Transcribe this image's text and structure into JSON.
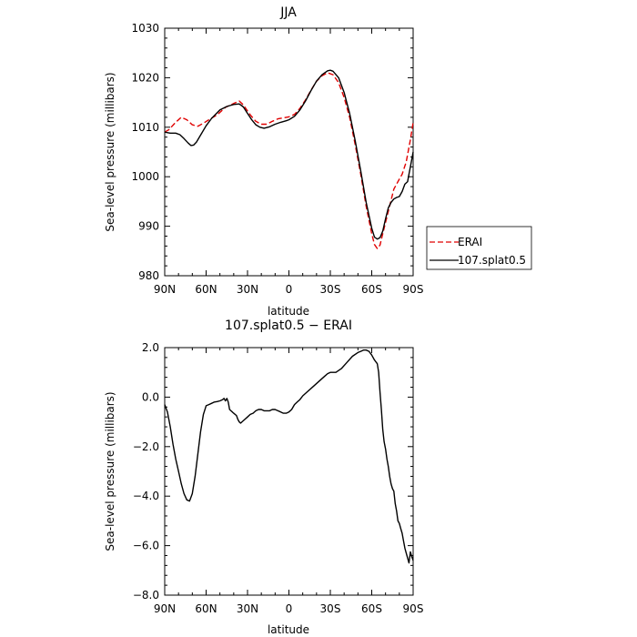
{
  "chart_data": [
    {
      "type": "line",
      "title": "JJA",
      "xlabel": "latitude",
      "ylabel": "Sea-level pressure (millibars)",
      "xlim": [
        90,
        -90
      ],
      "ylim": [
        980,
        1030
      ],
      "x_ticks": [
        90,
        60,
        30,
        0,
        -30,
        -60,
        -90
      ],
      "x_tick_labels": [
        "90N",
        "60N",
        "30N",
        "0",
        "30S",
        "60S",
        "90S"
      ],
      "y_ticks": [
        980,
        990,
        1000,
        1010,
        1020,
        1030
      ],
      "y_tick_labels": [
        "980",
        "990",
        "1000",
        "1010",
        "1020",
        "1030"
      ],
      "legend_placement": "right",
      "series": [
        {
          "name": "ERAI",
          "color": "#e00000",
          "dash": "dashed",
          "points": [
            [
              90,
              1009
            ],
            [
              87,
              1009.5
            ],
            [
              82,
              1011
            ],
            [
              78,
              1012
            ],
            [
              74,
              1011.5
            ],
            [
              70,
              1010.5
            ],
            [
              66,
              1010.2
            ],
            [
              62,
              1010.8
            ],
            [
              58,
              1011.5
            ],
            [
              52,
              1012.5
            ],
            [
              46,
              1014
            ],
            [
              40,
              1014.8
            ],
            [
              36,
              1015.3
            ],
            [
              33,
              1014.5
            ],
            [
              28,
              1012.5
            ],
            [
              24,
              1011.2
            ],
            [
              20,
              1010.6
            ],
            [
              16,
              1010.6
            ],
            [
              12,
              1011.2
            ],
            [
              8,
              1011.7
            ],
            [
              4,
              1011.9
            ],
            [
              0,
              1012.1
            ],
            [
              -4,
              1012.6
            ],
            [
              -8,
              1013.8
            ],
            [
              -12,
              1015.5
            ],
            [
              -16,
              1017.5
            ],
            [
              -20,
              1019.3
            ],
            [
              -24,
              1020.4
            ],
            [
              -28,
              1021
            ],
            [
              -32,
              1020.6
            ],
            [
              -36,
              1019
            ],
            [
              -40,
              1016
            ],
            [
              -44,
              1012
            ],
            [
              -48,
              1006.5
            ],
            [
              -52,
              1000.5
            ],
            [
              -56,
              994
            ],
            [
              -60,
              988.5
            ],
            [
              -62,
              986.3
            ],
            [
              -64,
              985.5
            ],
            [
              -66,
              986.2
            ],
            [
              -68,
              988.5
            ],
            [
              -72,
              993
            ],
            [
              -76,
              997.5
            ],
            [
              -80,
              999.5
            ],
            [
              -82,
              1000.5
            ],
            [
              -85,
              1003
            ],
            [
              -88,
              1007.5
            ],
            [
              -90,
              1011
            ]
          ]
        },
        {
          "name": "107.splat0.5",
          "color": "#000000",
          "dash": "solid",
          "points": [
            [
              90,
              1009
            ],
            [
              86,
              1008.8
            ],
            [
              82,
              1008.8
            ],
            [
              79,
              1008.5
            ],
            [
              76,
              1007.7
            ],
            [
              73,
              1006.8
            ],
            [
              71,
              1006.3
            ],
            [
              69,
              1006.4
            ],
            [
              67,
              1007
            ],
            [
              64,
              1008.4
            ],
            [
              60,
              1010.3
            ],
            [
              56,
              1011.8
            ],
            [
              50,
              1013.5
            ],
            [
              45,
              1014.2
            ],
            [
              40,
              1014.6
            ],
            [
              36,
              1014.7
            ],
            [
              33,
              1014.1
            ],
            [
              30,
              1012.8
            ],
            [
              27,
              1011.5
            ],
            [
              24,
              1010.5
            ],
            [
              21,
              1010
            ],
            [
              18,
              1009.8
            ],
            [
              14,
              1010.1
            ],
            [
              10,
              1010.6
            ],
            [
              6,
              1011
            ],
            [
              2,
              1011.3
            ],
            [
              0,
              1011.5
            ],
            [
              -4,
              1012.2
            ],
            [
              -8,
              1013.5
            ],
            [
              -12,
              1015.3
            ],
            [
              -16,
              1017.4
            ],
            [
              -20,
              1019.3
            ],
            [
              -24,
              1020.6
            ],
            [
              -28,
              1021.4
            ],
            [
              -30,
              1021.5
            ],
            [
              -32,
              1021.3
            ],
            [
              -36,
              1020
            ],
            [
              -40,
              1017
            ],
            [
              -44,
              1012.8
            ],
            [
              -48,
              1007.3
            ],
            [
              -52,
              1001.2
            ],
            [
              -56,
              994.8
            ],
            [
              -60,
              989.6
            ],
            [
              -62,
              987.8
            ],
            [
              -64,
              987.4
            ],
            [
              -66,
              987.7
            ],
            [
              -68,
              989
            ],
            [
              -70,
              991.5
            ],
            [
              -72,
              993.7
            ],
            [
              -74,
              994.8
            ],
            [
              -76,
              995.5
            ],
            [
              -78,
              995.8
            ],
            [
              -80,
              996
            ],
            [
              -82,
              997
            ],
            [
              -84,
              998.5
            ],
            [
              -86,
              999
            ],
            [
              -87,
              1000.5
            ],
            [
              -88,
              1002
            ],
            [
              -89,
              1003.5
            ],
            [
              -90,
              1005
            ]
          ]
        }
      ]
    },
    {
      "type": "line",
      "title": "107.splat0.5 − ERAI",
      "xlabel": "latitude",
      "ylabel": "Sea-level pressure (millibars)",
      "xlim": [
        90,
        -90
      ],
      "ylim": [
        -8,
        2
      ],
      "x_ticks": [
        90,
        60,
        30,
        0,
        -30,
        -60,
        -90
      ],
      "x_tick_labels": [
        "90N",
        "60N",
        "30N",
        "0",
        "30S",
        "60S",
        "90S"
      ],
      "y_ticks": [
        -8,
        -6,
        -4,
        -2,
        0,
        2
      ],
      "y_tick_labels": [
        "−8.0",
        "−6.0",
        "−4.0",
        "−2.0",
        "0.0",
        "2.0"
      ],
      "series": [
        {
          "color": "#000000",
          "dash": "solid",
          "points": [
            [
              90,
              -0.3
            ],
            [
              88,
              -0.6
            ],
            [
              86,
              -1.2
            ],
            [
              84,
              -1.9
            ],
            [
              82,
              -2.5
            ],
            [
              80,
              -3
            ],
            [
              78,
              -3.5
            ],
            [
              76,
              -3.9
            ],
            [
              74,
              -4.15
            ],
            [
              72,
              -4.2
            ],
            [
              70,
              -3.9
            ],
            [
              68,
              -3.2
            ],
            [
              66,
              -2.3
            ],
            [
              64,
              -1.4
            ],
            [
              62,
              -0.7
            ],
            [
              60,
              -0.35
            ],
            [
              58,
              -0.3
            ],
            [
              56,
              -0.25
            ],
            [
              54,
              -0.2
            ],
            [
              52,
              -0.18
            ],
            [
              50,
              -0.15
            ],
            [
              48,
              -0.1
            ],
            [
              47,
              -0.05
            ],
            [
              46,
              -0.15
            ],
            [
              45,
              -0.05
            ],
            [
              44,
              -0.2
            ],
            [
              43,
              -0.5
            ],
            [
              42,
              -0.55
            ],
            [
              41,
              -0.6
            ],
            [
              40,
              -0.65
            ],
            [
              39,
              -0.7
            ],
            [
              38,
              -0.75
            ],
            [
              37,
              -0.9
            ],
            [
              36,
              -1
            ],
            [
              35,
              -1.05
            ],
            [
              34,
              -1
            ],
            [
              32,
              -0.9
            ],
            [
              30,
              -0.8
            ],
            [
              28,
              -0.7
            ],
            [
              26,
              -0.65
            ],
            [
              24,
              -0.55
            ],
            [
              22,
              -0.5
            ],
            [
              20,
              -0.5
            ],
            [
              18,
              -0.55
            ],
            [
              16,
              -0.55
            ],
            [
              14,
              -0.55
            ],
            [
              12,
              -0.5
            ],
            [
              10,
              -0.5
            ],
            [
              8,
              -0.55
            ],
            [
              6,
              -0.6
            ],
            [
              4,
              -0.65
            ],
            [
              2,
              -0.65
            ],
            [
              0,
              -0.6
            ],
            [
              -2,
              -0.5
            ],
            [
              -4,
              -0.3
            ],
            [
              -6,
              -0.2
            ],
            [
              -8,
              -0.1
            ],
            [
              -10,
              0.05
            ],
            [
              -14,
              0.25
            ],
            [
              -18,
              0.45
            ],
            [
              -22,
              0.65
            ],
            [
              -26,
              0.85
            ],
            [
              -28,
              0.95
            ],
            [
              -30,
              1
            ],
            [
              -34,
              1
            ],
            [
              -38,
              1.15
            ],
            [
              -42,
              1.4
            ],
            [
              -46,
              1.65
            ],
            [
              -50,
              1.8
            ],
            [
              -52,
              1.85
            ],
            [
              -54,
              1.9
            ],
            [
              -56,
              1.9
            ],
            [
              -58,
              1.85
            ],
            [
              -60,
              1.7
            ],
            [
              -62,
              1.5
            ],
            [
              -64,
              1.35
            ],
            [
              -65,
              1
            ],
            [
              -66,
              0.2
            ],
            [
              -67,
              -0.5
            ],
            [
              -68,
              -1.3
            ],
            [
              -69,
              -1.8
            ],
            [
              -70,
              -2.1
            ],
            [
              -71,
              -2.5
            ],
            [
              -72,
              -2.8
            ],
            [
              -73,
              -3.2
            ],
            [
              -74,
              -3.5
            ],
            [
              -75,
              -3.7
            ],
            [
              -76,
              -3.8
            ],
            [
              -77,
              -4.3
            ],
            [
              -78,
              -4.6
            ],
            [
              -79,
              -5
            ],
            [
              -80,
              -5.1
            ],
            [
              -81,
              -5.3
            ],
            [
              -82,
              -5.5
            ],
            [
              -83,
              -5.8
            ],
            [
              -84,
              -6.1
            ],
            [
              -85,
              -6.3
            ],
            [
              -86,
              -6.5
            ],
            [
              -87,
              -6.7
            ],
            [
              -88,
              -6.25
            ],
            [
              -89,
              -6.45
            ],
            [
              -90,
              -6.6
            ]
          ]
        }
      ]
    }
  ]
}
